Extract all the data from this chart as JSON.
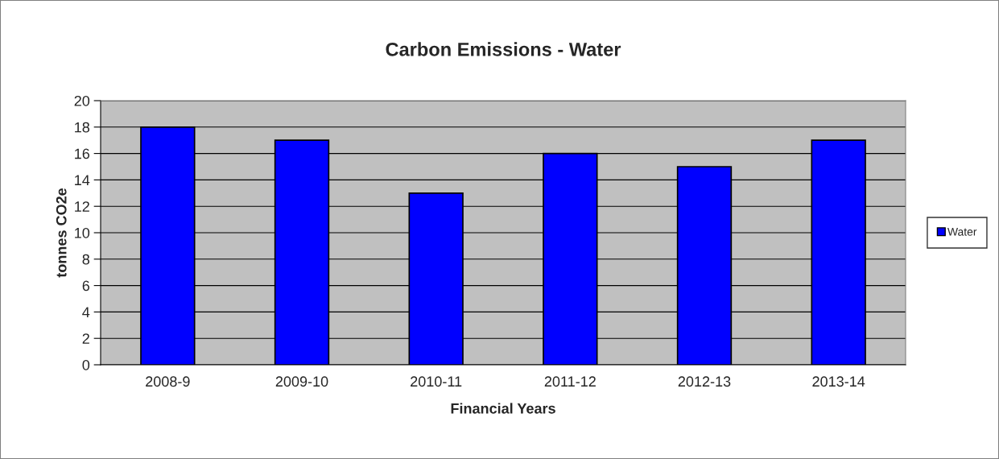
{
  "chart_data": {
    "type": "bar",
    "title": "Carbon Emissions - Water",
    "xlabel": "Financial Years",
    "ylabel": "tonnes CO2e",
    "categories": [
      "2008-9",
      "2009-10",
      "2010-11",
      "2011-12",
      "2012-13",
      "2013-14"
    ],
    "series": [
      {
        "name": "Water",
        "color": "#0000ff",
        "values": [
          18,
          17,
          13,
          16,
          15,
          17
        ]
      }
    ],
    "ylim": [
      0,
      20
    ],
    "yticks": [
      0,
      2,
      4,
      6,
      8,
      10,
      12,
      14,
      16,
      18,
      20
    ],
    "grid": "y",
    "legend": "right"
  }
}
